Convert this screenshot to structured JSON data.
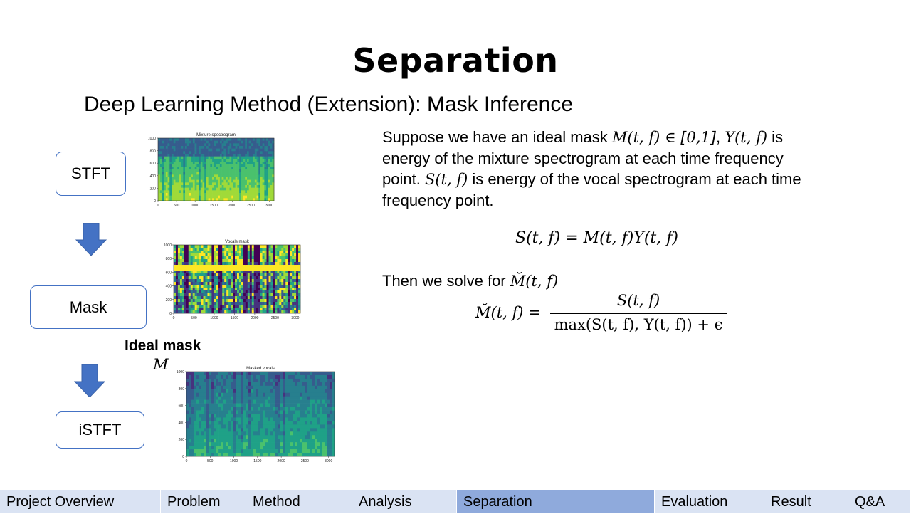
{
  "slide": {
    "title": "Separation",
    "subtitle": "Deep Learning Method (Extension): Mask Inference"
  },
  "flow": {
    "stft_label": "STFT",
    "mask_label": "Mask",
    "istft_label": "iSTFT",
    "ideal_mask_label": "Ideal mask",
    "ideal_mask_symbol": "M"
  },
  "spectrograms": [
    {
      "title": "Mixture spectrogram",
      "yticks": [
        "1000",
        "800",
        "600",
        "400",
        "200",
        "0"
      ],
      "xticks": [
        "0",
        "500",
        "1000",
        "1500",
        "2000",
        "2500",
        "3000"
      ]
    },
    {
      "title": "Vocals mask",
      "yticks": [
        "1000",
        "800",
        "600",
        "400",
        "200",
        "0"
      ],
      "xticks": [
        "0",
        "500",
        "1000",
        "1500",
        "2000",
        "2500",
        "3000"
      ]
    },
    {
      "title": "Masked vocals",
      "yticks": [
        "1000",
        "800",
        "600",
        "400",
        "200",
        "0"
      ],
      "xticks": [
        "0",
        "500",
        "1000",
        "1500",
        "2000",
        "2500",
        "3000"
      ]
    }
  ],
  "text": {
    "para_1": "Suppose we have an ideal mask ",
    "m_expr": "M(t, f) ∈ [0,1]",
    "para_2": ", ",
    "y_expr": "Y(t, f)",
    "para_3": " is energy of the mixture spectrogram at each time frequency point. ",
    "s_expr": "S(t, f)",
    "para_4": " is energy of the vocal spectrogram at each time frequency point.",
    "equation_1": "S(t, f) = M(t, f)Y(t, f)",
    "then_text": "Then we solve for ",
    "then_expr": "M̆(t, f)",
    "eq2_lhs": "M̆(t, f) =",
    "eq2_num": "S(t, f)",
    "eq2_den": "max(S(t, f), Y(t, f)) + ϵ"
  },
  "nav": {
    "items": [
      {
        "label": "Project Overview"
      },
      {
        "label": "Problem"
      },
      {
        "label": "Method"
      },
      {
        "label": "Analysis"
      },
      {
        "label": "Separation"
      },
      {
        "label": "Evaluation"
      },
      {
        "label": "Result"
      },
      {
        "label": "Q&A"
      }
    ],
    "active": "Separation",
    "colors": {
      "bar": "#dae3f3",
      "active": "#8faadc"
    }
  },
  "colors": {
    "box_border": "#4472c4",
    "arrow_fill": "#4472c4"
  }
}
